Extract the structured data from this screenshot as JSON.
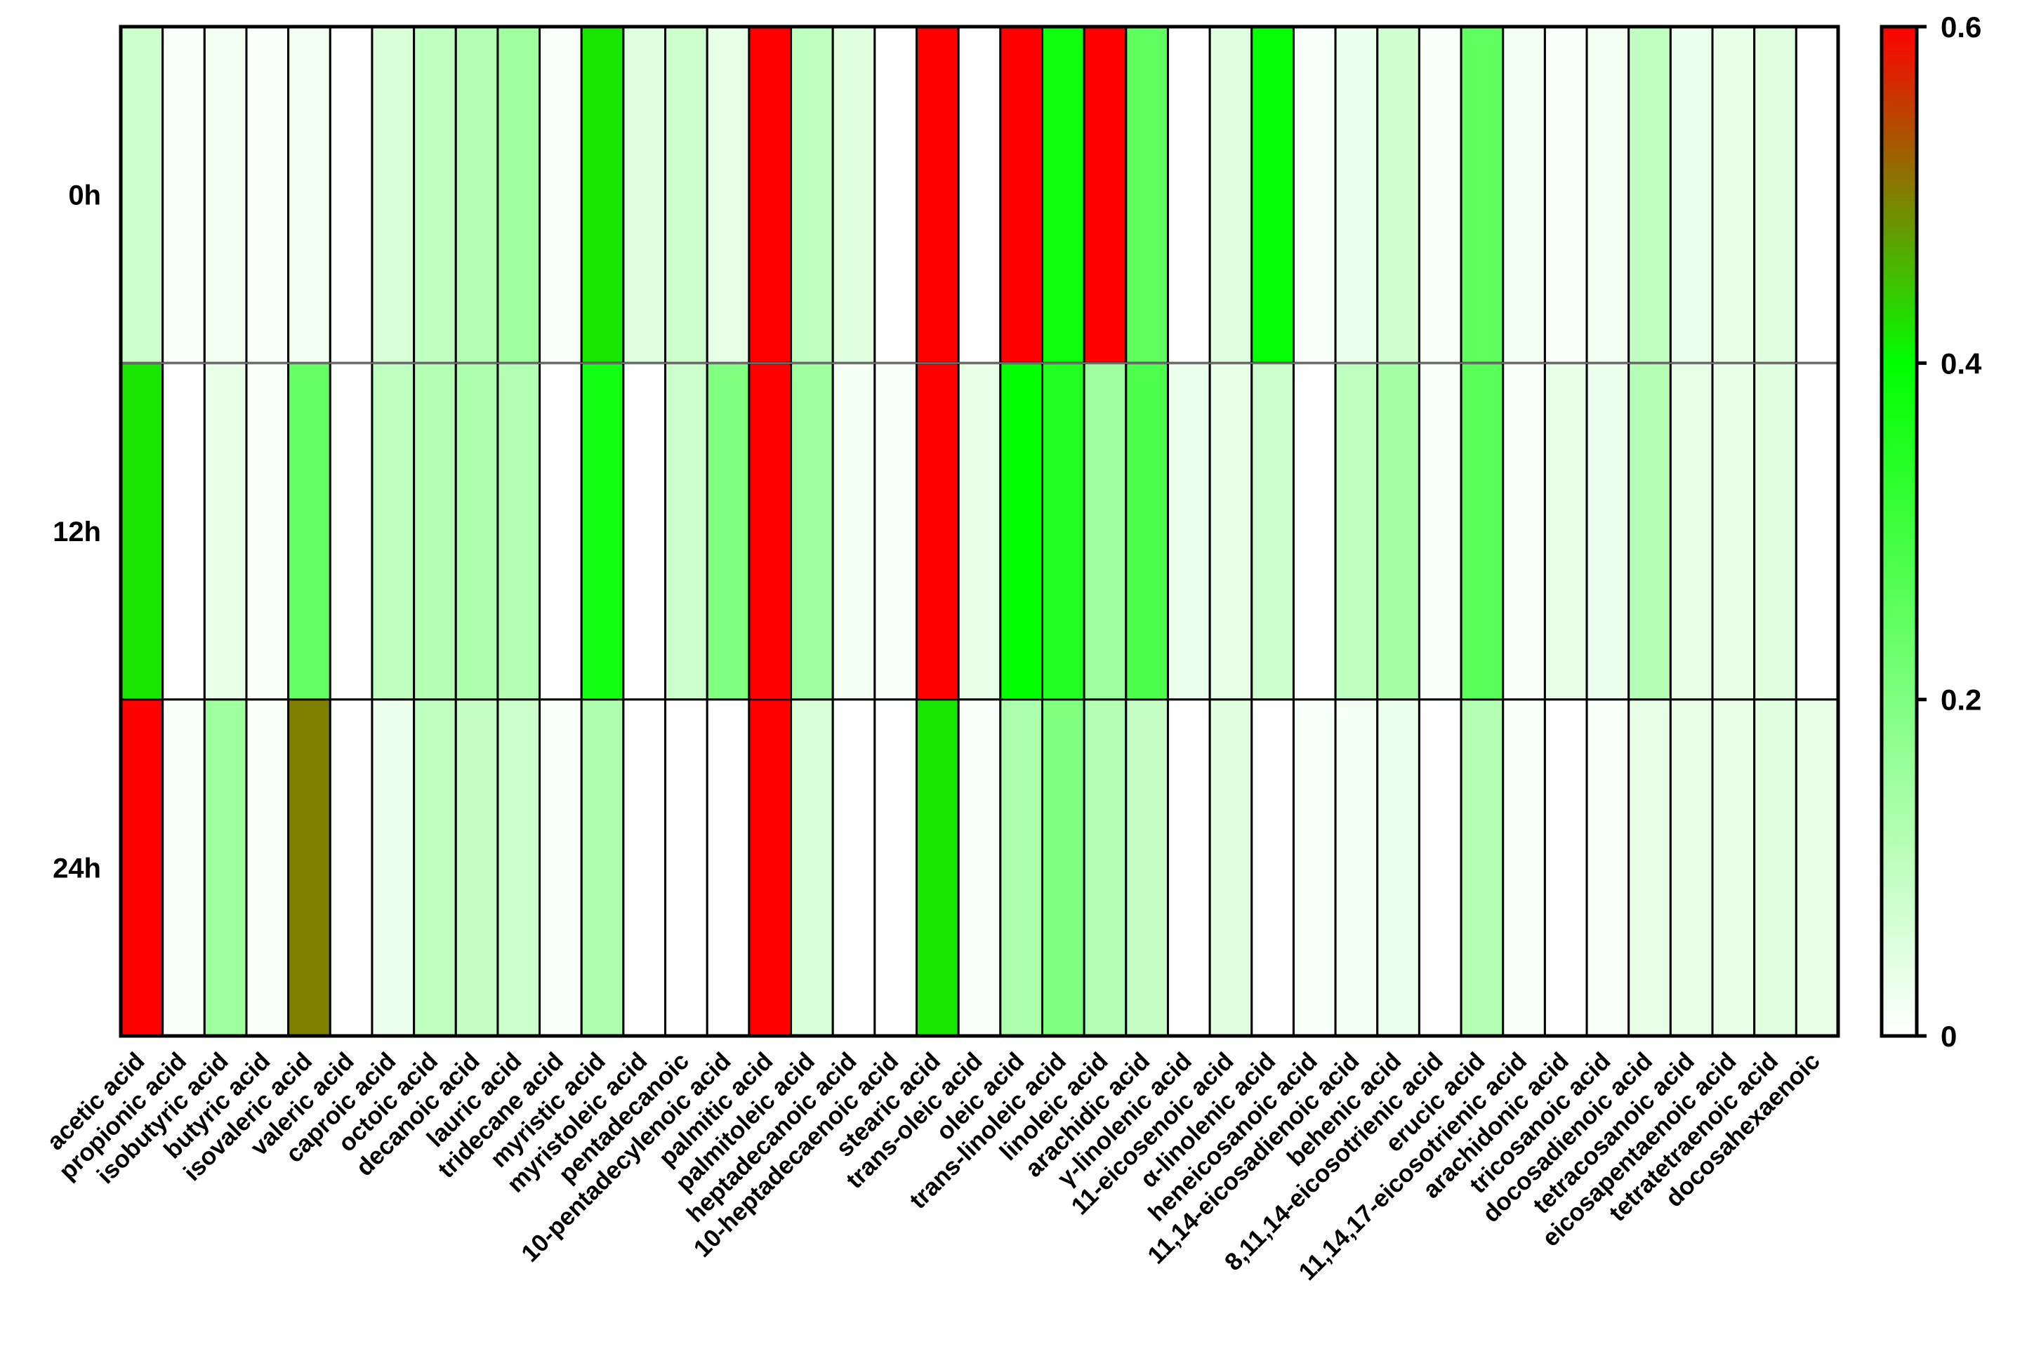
{
  "chart_data": {
    "type": "heatmap",
    "title": "",
    "xlabel": "",
    "ylabel": "",
    "rows": [
      "0h",
      "12h",
      "24h"
    ],
    "columns": [
      "acetic acid",
      "propionic acid",
      "isobutyric acid",
      "butyric acid",
      "isovaleric acid",
      "valeric acid",
      "caproic acid",
      "octoic acid",
      "decanoic acid",
      "lauric acid",
      "tridecane acid",
      "myristic acid",
      "myristoleic acid",
      "pentadecanoic",
      "10-pentadecylenoic acid",
      "palmitic acid",
      "palmitoleic acid",
      "heptadecanoic acid",
      "10-heptadecaenoic acid",
      "stearic acid",
      "trans-oleic acid",
      "oleic acid",
      "trans-linoleic acid",
      "linoleic acid",
      "arachidic acid",
      "γ-linolenic acid",
      "11-eicosenoic acid",
      "α-linolenic acid",
      "heneicosanoic acid",
      "11,14-eicosadienoic acid",
      "behenic acid",
      "8,11,14-eicosotrienic acid",
      "erucic acid",
      "11,14,17-eicosotrienic acid",
      "arachidonic acid",
      "tricosanoic acid",
      "docosadienoic acid",
      "tetracosanoic acid",
      "eicosapentaenoic acid",
      "tetratetraenoic acid",
      "docosahexaenoic"
    ],
    "values": [
      [
        0.08,
        0.01,
        0.02,
        0.01,
        0.02,
        0.0,
        0.06,
        0.1,
        0.12,
        0.15,
        0.01,
        0.42,
        0.05,
        0.08,
        0.04,
        0.6,
        0.1,
        0.05,
        0.0,
        0.6,
        0.0,
        0.6,
        0.38,
        0.6,
        0.25,
        0.0,
        0.05,
        0.39,
        0.01,
        0.03,
        0.07,
        0.01,
        0.25,
        0.02,
        0.01,
        0.02,
        0.1,
        0.03,
        0.04,
        0.05,
        0.0
      ],
      [
        0.42,
        0.0,
        0.04,
        0.01,
        0.24,
        0.0,
        0.1,
        0.12,
        0.13,
        0.12,
        0.0,
        0.37,
        0.0,
        0.08,
        0.2,
        0.6,
        0.15,
        0.02,
        0.01,
        0.6,
        0.04,
        0.4,
        0.35,
        0.15,
        0.28,
        0.03,
        0.04,
        0.08,
        0.0,
        0.1,
        0.14,
        0.01,
        0.26,
        0.01,
        0.04,
        0.03,
        0.12,
        0.04,
        0.04,
        0.05,
        0.0
      ],
      [
        0.6,
        0.01,
        0.15,
        0.01,
        0.5,
        0.0,
        0.03,
        0.1,
        0.09,
        0.08,
        0.01,
        0.13,
        0.0,
        0.0,
        0.0,
        0.6,
        0.06,
        0.0,
        0.0,
        0.42,
        0.01,
        0.13,
        0.2,
        0.12,
        0.09,
        0.0,
        0.05,
        0.0,
        0.01,
        0.02,
        0.03,
        0.0,
        0.12,
        0.01,
        0.0,
        0.01,
        0.04,
        0.04,
        0.04,
        0.05,
        0.04
      ]
    ],
    "colorbar": {
      "min": 0,
      "max": 0.6,
      "ticks": [
        0,
        0.2,
        0.4,
        0.6
      ],
      "tick_labels": [
        "0",
        "0.2",
        "0.4",
        "0.6"
      ],
      "colors": {
        "low": "#ffffff",
        "mid": "#00ff00",
        "high": "#ff0000"
      },
      "mid_value": 0.4
    }
  }
}
